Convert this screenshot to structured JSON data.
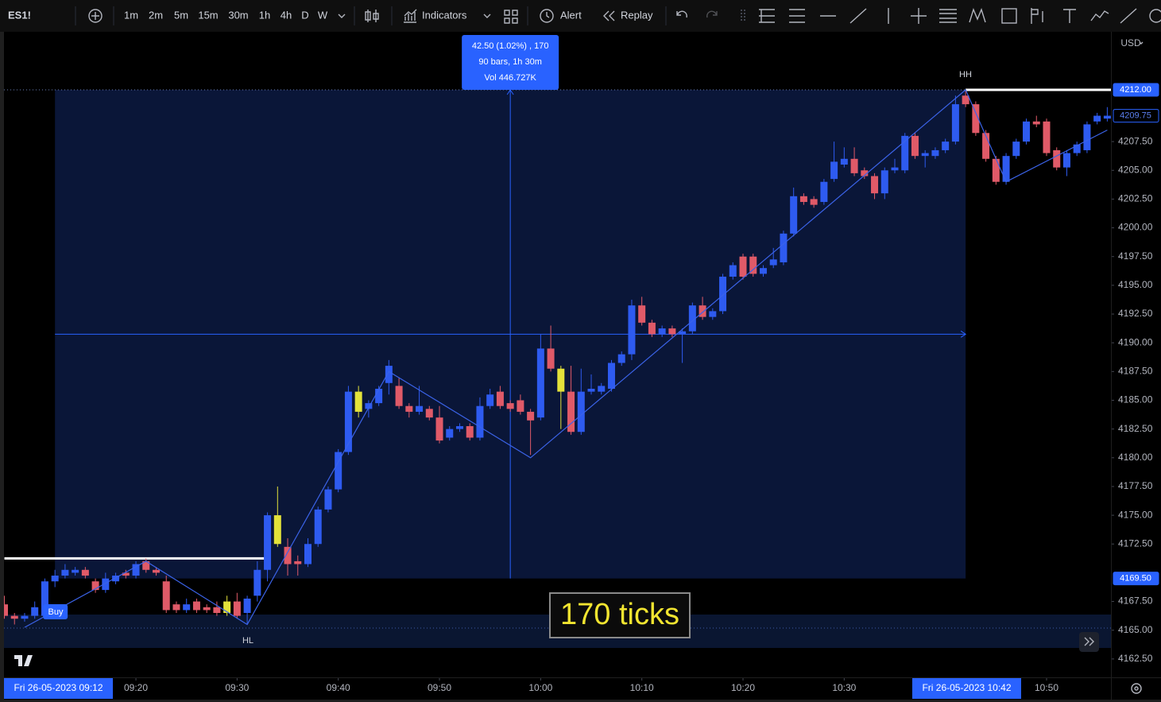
{
  "toolbar": {
    "symbol": "ES1!",
    "intervals": [
      "1m",
      "2m",
      "5m",
      "15m",
      "30m",
      "1h",
      "4h",
      "D",
      "W"
    ],
    "indicators": "Indicators",
    "alert": "Alert",
    "replay": "Replay"
  },
  "chart_data": {
    "type": "candlestick",
    "currency": "USD",
    "x": [
      "09:07",
      "09:08",
      "09:09",
      "09:10",
      "09:11",
      "09:12",
      "09:13",
      "09:14",
      "09:15",
      "09:16",
      "09:17",
      "09:18",
      "09:19",
      "09:20",
      "09:21",
      "09:22",
      "09:23",
      "09:24",
      "09:25",
      "09:26",
      "09:27",
      "09:28",
      "09:29",
      "09:30",
      "09:31",
      "09:32",
      "09:33",
      "09:34",
      "09:35",
      "09:36",
      "09:37",
      "09:38",
      "09:39",
      "09:40",
      "09:41",
      "09:42",
      "09:43",
      "09:44",
      "09:45",
      "09:46",
      "09:47",
      "09:48",
      "09:49",
      "09:50",
      "09:51",
      "09:52",
      "09:53",
      "09:54",
      "09:55",
      "09:56",
      "09:57",
      "09:58",
      "09:59",
      "10:00",
      "10:01",
      "10:02",
      "10:03",
      "10:04",
      "10:05",
      "10:06",
      "10:07",
      "10:08",
      "10:09",
      "10:10",
      "10:11",
      "10:12",
      "10:13",
      "10:14",
      "10:15",
      "10:16",
      "10:17",
      "10:18",
      "10:19",
      "10:20",
      "10:21",
      "10:22",
      "10:23",
      "10:24",
      "10:25",
      "10:26",
      "10:27",
      "10:28",
      "10:29",
      "10:30",
      "10:31",
      "10:32",
      "10:33",
      "10:34",
      "10:35",
      "10:36",
      "10:37",
      "10:38",
      "10:39",
      "10:40",
      "10:41",
      "10:42",
      "10:43",
      "10:44",
      "10:45",
      "10:46",
      "10:47",
      "10:48",
      "10:49",
      "10:50",
      "10:51",
      "10:52",
      "10:53",
      "10:54",
      "10:55",
      "10:56"
    ],
    "open": [
      4167.25,
      4166.25,
      4166,
      4166.25,
      4166.25,
      4169.25,
      4169.75,
      4170,
      4170.25,
      4169.25,
      4168.5,
      4169.25,
      4170,
      4169.75,
      4171,
      4170.25,
      4169.25,
      4167.25,
      4166.75,
      4167.5,
      4167,
      4167,
      4166.5,
      4167.5,
      4166.5,
      4168,
      4170.25,
      4175,
      4172.25,
      4171,
      4170.75,
      4172.5,
      4175.5,
      4177.25,
      4180.5,
      4185.75,
      4184.25,
      4184.75,
      4186.5,
      4186.25,
      4184.5,
      4184,
      4184.25,
      4183.5,
      4181.75,
      4182.5,
      4182.75,
      4181.75,
      4184.5,
      4185.75,
      4184.75,
      4185,
      4184,
      4183.5,
      4189.5,
      4187.75,
      4185.75,
      4182.25,
      4185.75,
      4185.75,
      4186,
      4188.25,
      4189,
      4193.25,
      4191.75,
      4190.75,
      4191.25,
      4190.75,
      4191,
      4193.25,
      4192.25,
      4192.75,
      4195.75,
      4197.5,
      4197.5,
      4196,
      4196.75,
      4197,
      4199.5,
      4202.75,
      4202.5,
      4202.25,
      4204.25,
      4205.5,
      4206,
      4205,
      4204.5,
      4203,
      4205,
      4205,
      4208,
      4206.25,
      4206.25,
      4206.75,
      4207.5,
      4211.5,
      4210.75,
      4208.25,
      4206,
      4204,
      4206.25,
      4207.5,
      4209.25,
      4209.25,
      4206.75,
      4205.25,
      4206.5,
      4206.75,
      4209.25,
      4209.5
    ],
    "high": [
      4168,
      4166.5,
      4166.5,
      4167.5,
      4169.5,
      4170.25,
      4170.75,
      4170.5,
      4170.5,
      4169.5,
      4170,
      4170,
      4170.25,
      4171,
      4171.25,
      4170.5,
      4169.75,
      4167.5,
      4167.75,
      4167.75,
      4167.25,
      4167.5,
      4168,
      4168.25,
      4168,
      4171,
      4175.25,
      4177.5,
      4173,
      4171.5,
      4173,
      4175.75,
      4177.5,
      4180.75,
      4186.25,
      4186.25,
      4185,
      4186.25,
      4188.5,
      4187,
      4184.75,
      4186.25,
      4184.5,
      4184.5,
      4182.75,
      4183,
      4183,
      4185.25,
      4186,
      4186.25,
      4185,
      4185.5,
      4184.25,
      4190.75,
      4191.5,
      4188,
      4188,
      4187.75,
      4187.25,
      4186.5,
      4188.5,
      4189.25,
      4193.75,
      4194,
      4192,
      4191.5,
      4191.5,
      4191.25,
      4193.5,
      4194,
      4193,
      4196,
      4197,
      4197.75,
      4197.75,
      4196.75,
      4198.25,
      4199.75,
      4203.5,
      4203,
      4202.75,
      4204.25,
      4207.5,
      4207,
      4207,
      4205.25,
      4204.75,
      4205.25,
      4206,
      4208.25,
      4208.25,
      4206.75,
      4207,
      4207.75,
      4211.5,
      4212,
      4211,
      4208.5,
      4206.25,
      4206.5,
      4207.75,
      4209.5,
      4209.75,
      4209.5,
      4207,
      4206.75,
      4207.5,
      4209.25,
      4210,
      4210.5
    ],
    "low": [
      4166,
      4165.5,
      4165.75,
      4166,
      4166,
      4168.75,
      4169.5,
      4169.75,
      4169.5,
      4168.25,
      4168.25,
      4169,
      4169.5,
      4169.5,
      4170,
      4169.75,
      4166.5,
      4166.5,
      4166.5,
      4166.5,
      4166.5,
      4166.25,
      4166.25,
      4166,
      4165.5,
      4167.5,
      4169.25,
      4172.25,
      4169.75,
      4169.75,
      4170.5,
      4172.25,
      4175.25,
      4177,
      4180.25,
      4183.5,
      4183.5,
      4184.5,
      4185.5,
      4184.25,
      4183.5,
      4183.75,
      4183.25,
      4181.25,
      4181.5,
      4182.25,
      4181.5,
      4181.5,
      4184.25,
      4184.25,
      4184,
      4183.75,
      4180.25,
      4183.25,
      4187.5,
      4182.5,
      4182,
      4182,
      4185.5,
      4185.5,
      4185.75,
      4188,
      4188.5,
      4191.5,
      4190.5,
      4190.5,
      4190.5,
      4188.25,
      4190.75,
      4192,
      4192,
      4192.5,
      4195.5,
      4195.5,
      4195.75,
      4195.75,
      4196.5,
      4196.75,
      4199.25,
      4202,
      4201.75,
      4202,
      4204,
      4205.25,
      4204.5,
      4204.25,
      4202.5,
      4202.5,
      4204.75,
      4204.75,
      4206,
      4205.25,
      4206,
      4206.5,
      4207.25,
      4210.5,
      4208,
      4205.75,
      4203.75,
      4203.75,
      4206,
      4207.25,
      4208.75,
      4206.25,
      4205,
      4204.5,
      4206.25,
      4206.5,
      4209,
      4209.25
    ],
    "close": [
      4166.25,
      4166,
      4166.25,
      4167,
      4169.25,
      4169.75,
      4170.25,
      4170.25,
      4169.75,
      4168.5,
      4169.5,
      4169.75,
      4169.75,
      4170.75,
      4170.25,
      4170,
      4166.75,
      4166.75,
      4167.25,
      4166.75,
      4166.75,
      4166.5,
      4167.5,
      4166.25,
      4167.75,
      4170.25,
      4175,
      4172.5,
      4170.75,
      4170.75,
      4172.5,
      4175.5,
      4177.25,
      4180.5,
      4185.75,
      4184,
      4184.75,
      4186,
      4188,
      4184.5,
      4184,
      4184.5,
      4183.5,
      4181.5,
      4182.5,
      4182.75,
      4181.75,
      4184.5,
      4185.5,
      4184.5,
      4184.25,
      4184,
      4183.25,
      4189.5,
      4187.75,
      4185.75,
      4182.25,
      4185.75,
      4186,
      4186.25,
      4188.25,
      4189,
      4193.25,
      4191.75,
      4190.75,
      4191.25,
      4190.75,
      4191,
      4193.25,
      4192.25,
      4192.75,
      4195.75,
      4196.75,
      4195.75,
      4196,
      4196.5,
      4197.25,
      4199.5,
      4202.75,
      4202.25,
      4202,
      4204,
      4205.75,
      4206,
      4204.75,
      4204.5,
      4203,
      4205,
      4205.25,
      4208,
      4206.25,
      4206.5,
      4206.75,
      4207.5,
      4210.75,
      4210.75,
      4208.25,
      4206,
      4204,
      4206.25,
      4207.5,
      4209.25,
      4209,
      4206.5,
      4205.25,
      4206.5,
      4207.25,
      4209,
      4209.75,
      4209.75
    ],
    "up_color": "#2e5bf0",
    "down_color": "#e05a68",
    "highlight_color": "#e3e23a",
    "highlighted": [
      "09:29",
      "09:34",
      "09:42",
      "10:02"
    ],
    "xlim": [
      "09:07",
      "10:57"
    ],
    "xticks": [
      "09:20",
      "09:30",
      "09:40",
      "09:50",
      "10:00",
      "10:10",
      "10:20",
      "10:30",
      "10:50"
    ],
    "ylim": [
      4160.9,
      4217.05
    ],
    "yticks": [
      {
        "value": 4162.5,
        "label": "4162.50"
      },
      {
        "value": 4165,
        "label": "4165.00"
      },
      {
        "value": 4167.5,
        "label": "4167.50"
      },
      {
        "value": 4172.5,
        "label": "4172.50"
      },
      {
        "value": 4175,
        "label": "4175.00"
      },
      {
        "value": 4177.5,
        "label": "4177.50"
      },
      {
        "value": 4180,
        "label": "4180.00"
      },
      {
        "value": 4182.5,
        "label": "4182.50"
      },
      {
        "value": 4185,
        "label": "4185.00"
      },
      {
        "value": 4187.5,
        "label": "4187.50"
      },
      {
        "value": 4190,
        "label": "4190.00"
      },
      {
        "value": 4192.5,
        "label": "4192.50"
      },
      {
        "value": 4195,
        "label": "4195.00"
      },
      {
        "value": 4197.5,
        "label": "4197.50"
      },
      {
        "value": 4200,
        "label": "4200.00"
      },
      {
        "value": 4202.5,
        "label": "4202.50"
      },
      {
        "value": 4205,
        "label": "4205.00"
      },
      {
        "value": 4207.5,
        "label": "4207.50"
      }
    ],
    "grid": false,
    "price_labels": [
      {
        "value": 4212,
        "label": "4212.00",
        "style": "filled"
      },
      {
        "value": 4209.75,
        "label": "4209.75",
        "style": "outline"
      },
      {
        "value": 4169.5,
        "label": "4169.50",
        "style": "filled"
      }
    ],
    "zigzag": {
      "color": "#3b63e8",
      "x": [
        "09:09",
        "09:21",
        "09:31",
        "09:45",
        "09:59",
        "10:42",
        "10:46",
        "10:56"
      ],
      "values": [
        4165.25,
        4171,
        4165.5,
        4187.5,
        4180,
        4212,
        4204,
        4208.5
      ]
    },
    "pivot_labels": [
      "HL",
      "HH"
    ],
    "buy_label": "Buy",
    "levels": [
      {
        "value": 4171.25,
        "start": "09:07",
        "end": "09:33"
      },
      {
        "value": 4212,
        "start": "10:42",
        "end": "10:57"
      }
    ],
    "measure": {
      "start": "09:12",
      "end": "10:42",
      "low": 4169.5,
      "high": 4212,
      "lines": [
        "42.50 (1.02%) , 170",
        "90 bars, 1h 30m",
        "Vol 446.727K"
      ],
      "start_label": "Fri 26-05-2023  09:12",
      "end_label": "Fri 26-05-2023  10:42",
      "ticks_box": "170 ticks"
    }
  }
}
